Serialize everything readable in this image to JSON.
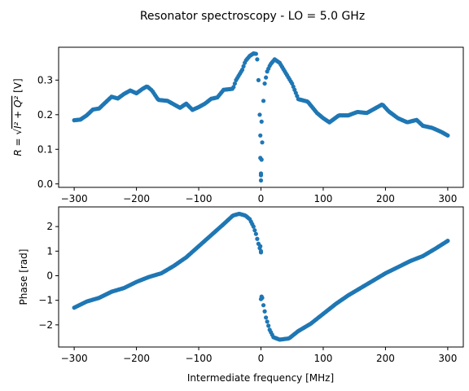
{
  "figure": {
    "suptitle": "Resonator spectroscopy - LO = 5.0 GHz"
  },
  "chart_data": [
    {
      "type": "scatter",
      "ylabel_main": "R = √",
      "ylabel_rad": "I² + Q²",
      "ylabel_unit": " [V]",
      "xlabel": "",
      "xlim": [
        -325,
        325
      ],
      "ylim": [
        -0.01,
        0.395
      ],
      "xticks": [
        -300,
        -200,
        -100,
        0,
        100,
        200,
        300
      ],
      "xtick_labels": [
        "−300",
        "−200",
        "−100",
        "0",
        "100",
        "200",
        "300"
      ],
      "yticks": [
        0.0,
        0.1,
        0.2,
        0.3
      ],
      "ytick_labels": [
        "0.0",
        "0.1",
        "0.2",
        "0.3"
      ],
      "grid": false,
      "marker_color": "#1f77b4",
      "x_range": [
        -300,
        300
      ],
      "n_points": 301,
      "y_anchors": [
        [
          -300,
          0.184
        ],
        [
          -290,
          0.186
        ],
        [
          -280,
          0.198
        ],
        [
          -270,
          0.215
        ],
        [
          -260,
          0.218
        ],
        [
          -250,
          0.235
        ],
        [
          -240,
          0.252
        ],
        [
          -230,
          0.247
        ],
        [
          -220,
          0.26
        ],
        [
          -210,
          0.27
        ],
        [
          -200,
          0.262
        ],
        [
          -190,
          0.275
        ],
        [
          -183,
          0.282
        ],
        [
          -175,
          0.27
        ],
        [
          -165,
          0.243
        ],
        [
          -150,
          0.24
        ],
        [
          -140,
          0.23
        ],
        [
          -130,
          0.22
        ],
        [
          -120,
          0.232
        ],
        [
          -110,
          0.214
        ],
        [
          -100,
          0.222
        ],
        [
          -90,
          0.232
        ],
        [
          -80,
          0.246
        ],
        [
          -70,
          0.25
        ],
        [
          -60,
          0.272
        ],
        [
          -45,
          0.275
        ],
        [
          -40,
          0.3
        ],
        [
          -30,
          0.33
        ],
        [
          -25,
          0.355
        ],
        [
          -18,
          0.37
        ],
        [
          -12,
          0.377
        ],
        [
          -8,
          0.376
        ],
        [
          -6,
          0.36
        ],
        [
          -4,
          0.3
        ],
        [
          -2,
          0.2
        ],
        [
          0,
          0.01
        ],
        [
          2,
          0.12
        ],
        [
          4,
          0.24
        ],
        [
          6,
          0.29
        ],
        [
          10,
          0.325
        ],
        [
          15,
          0.345
        ],
        [
          22,
          0.36
        ],
        [
          30,
          0.35
        ],
        [
          40,
          0.32
        ],
        [
          50,
          0.29
        ],
        [
          60,
          0.245
        ],
        [
          75,
          0.238
        ],
        [
          90,
          0.205
        ],
        [
          100,
          0.19
        ],
        [
          110,
          0.178
        ],
        [
          125,
          0.198
        ],
        [
          140,
          0.198
        ],
        [
          155,
          0.208
        ],
        [
          170,
          0.205
        ],
        [
          180,
          0.215
        ],
        [
          195,
          0.23
        ],
        [
          205,
          0.21
        ],
        [
          220,
          0.19
        ],
        [
          235,
          0.178
        ],
        [
          250,
          0.185
        ],
        [
          260,
          0.168
        ],
        [
          275,
          0.162
        ],
        [
          290,
          0.15
        ],
        [
          300,
          0.14
        ]
      ],
      "extra_points": [
        [
          0,
          0.03
        ],
        [
          0,
          0.025
        ],
        [
          -1,
          0.075
        ],
        [
          1,
          0.07
        ],
        [
          -1,
          0.14
        ],
        [
          1,
          0.18
        ]
      ]
    },
    {
      "type": "scatter",
      "ylabel": "Phase [rad]",
      "xlabel": "Intermediate frequency [MHz]",
      "xlim": [
        -325,
        325
      ],
      "ylim": [
        -2.9,
        2.8
      ],
      "xticks": [
        -300,
        -200,
        -100,
        0,
        100,
        200,
        300
      ],
      "xtick_labels": [
        "−300",
        "−200",
        "−100",
        "0",
        "100",
        "200",
        "300"
      ],
      "yticks": [
        -2,
        -1,
        0,
        1,
        2
      ],
      "ytick_labels": [
        "−2",
        "−1",
        "0",
        "1",
        "2"
      ],
      "grid": false,
      "marker_color": "#1f77b4",
      "x_range": [
        -300,
        300
      ],
      "n_points": 301,
      "y_anchors": [
        [
          -300,
          -1.3
        ],
        [
          -280,
          -1.05
        ],
        [
          -260,
          -0.9
        ],
        [
          -240,
          -0.65
        ],
        [
          -220,
          -0.5
        ],
        [
          -200,
          -0.25
        ],
        [
          -180,
          -0.05
        ],
        [
          -160,
          0.1
        ],
        [
          -140,
          0.4
        ],
        [
          -120,
          0.75
        ],
        [
          -100,
          1.2
        ],
        [
          -80,
          1.65
        ],
        [
          -60,
          2.1
        ],
        [
          -45,
          2.45
        ],
        [
          -35,
          2.52
        ],
        [
          -25,
          2.45
        ],
        [
          -18,
          2.3
        ],
        [
          -12,
          2.0
        ],
        [
          -8,
          1.7
        ],
        [
          -4,
          1.3
        ],
        [
          0,
          0.95
        ],
        [
          2,
          -0.9
        ],
        [
          4,
          -1.2
        ],
        [
          8,
          -1.7
        ],
        [
          14,
          -2.2
        ],
        [
          20,
          -2.5
        ],
        [
          30,
          -2.6
        ],
        [
          45,
          -2.55
        ],
        [
          60,
          -2.25
        ],
        [
          80,
          -1.95
        ],
        [
          100,
          -1.55
        ],
        [
          120,
          -1.15
        ],
        [
          140,
          -0.8
        ],
        [
          160,
          -0.5
        ],
        [
          180,
          -0.2
        ],
        [
          200,
          0.1
        ],
        [
          220,
          0.35
        ],
        [
          240,
          0.6
        ],
        [
          260,
          0.8
        ],
        [
          280,
          1.1
        ],
        [
          300,
          1.42
        ]
      ],
      "extra_points": [
        [
          0,
          1.0
        ],
        [
          -1,
          1.2
        ],
        [
          1,
          -0.85
        ],
        [
          0,
          -0.95
        ]
      ]
    }
  ]
}
